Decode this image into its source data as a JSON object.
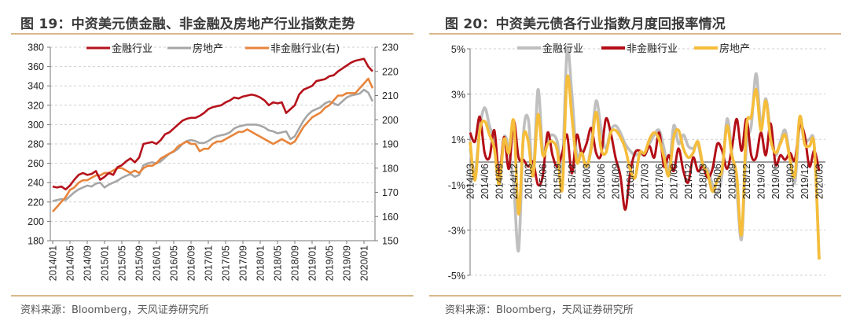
{
  "figures": [
    {
      "title": "图 19：中资美元债金融、非金融及房地产行业指数走势",
      "source": "资料来源：Bloomberg，天风证券研究所"
    },
    {
      "title": "图 20：中资美元债各行业指数月度回报率情况",
      "source": "资料来源：Bloomberg，天风证券研究所"
    }
  ],
  "chart_data": [
    {
      "type": "line",
      "title": "图 19：中资美元债金融、非金融及房地产行业指数走势",
      "xlabel": "",
      "ylabel": "",
      "ylim": [
        180,
        380
      ],
      "y2lim": [
        150,
        230
      ],
      "yticks": [
        "380",
        "360",
        "340",
        "320",
        "300",
        "280",
        "260",
        "240",
        "220",
        "200",
        "180"
      ],
      "y2ticks": [
        "230",
        "220",
        "210",
        "200",
        "190",
        "180",
        "170",
        "160",
        "150"
      ],
      "x_tick_labels": [
        "2014/01",
        "2014/05",
        "2014/09",
        "2015/01",
        "2015/05",
        "2015/09",
        "2016/01",
        "2016/05",
        "2016/09",
        "2017/01",
        "2017/05",
        "2017/09",
        "2018/01",
        "2018/05",
        "2018/09",
        "2019/01",
        "2019/05",
        "2019/09",
        "2020/01"
      ],
      "x_start": "2014/01",
      "frequency": "monthly",
      "grid": true,
      "legend_position": "top",
      "series": [
        {
          "name": "金融行业",
          "axis": "left",
          "color": "#b5121b",
          "values": [
            236,
            235,
            236,
            233,
            237,
            243,
            248,
            250,
            248,
            249,
            252,
            243,
            246,
            250,
            248,
            256,
            258,
            262,
            265,
            261,
            266,
            280,
            281,
            282,
            280,
            284,
            290,
            292,
            296,
            300,
            304,
            306,
            307,
            307,
            309,
            312,
            316,
            318,
            319,
            320,
            323,
            325,
            328,
            327,
            329,
            330,
            331,
            330,
            328,
            325,
            320,
            323,
            322,
            323,
            312,
            316,
            320,
            331,
            336,
            338,
            340,
            345,
            346,
            347,
            350,
            351,
            355,
            358,
            361,
            364,
            366,
            367,
            368,
            360,
            355
          ]
        },
        {
          "name": "房地产",
          "axis": "left",
          "color": "#a6a6a6",
          "values": [
            221,
            222,
            223,
            222,
            226,
            230,
            233,
            235,
            237,
            236,
            239,
            240,
            235,
            238,
            240,
            242,
            245,
            247,
            249,
            246,
            248,
            258,
            260,
            261,
            260,
            262,
            266,
            270,
            272,
            275,
            280,
            283,
            284,
            283,
            281,
            281,
            283,
            286,
            288,
            289,
            290,
            292,
            296,
            298,
            299,
            300,
            300,
            300,
            299,
            297,
            294,
            293,
            291,
            292,
            293,
            285,
            288,
            296,
            304,
            310,
            314,
            316,
            318,
            322,
            324,
            322,
            320,
            324,
            328,
            330,
            331,
            332,
            336,
            333,
            324
          ]
        },
        {
          "name": "非金融行业(右)",
          "axis": "right",
          "color": "#e8843b",
          "values": [
            162,
            164,
            166,
            168,
            171,
            172,
            174,
            175,
            175,
            176,
            177,
            177,
            178,
            178,
            179,
            180,
            180,
            179,
            178,
            179,
            178,
            180,
            181,
            181,
            182,
            184,
            185,
            186,
            187,
            189,
            190,
            191,
            190,
            190,
            187,
            188,
            188,
            190,
            191,
            191,
            192,
            193,
            194,
            195,
            195,
            196,
            195,
            194,
            193,
            192,
            191,
            190,
            191,
            192,
            191,
            190,
            191,
            194,
            197,
            199,
            201,
            202,
            203,
            205,
            206,
            208,
            210,
            210,
            211,
            211,
            211,
            213,
            215,
            217,
            213
          ]
        }
      ]
    },
    {
      "type": "line",
      "title": "图 20：中资美元债各行业指数月度回报率情况",
      "xlabel": "",
      "ylabel": "",
      "ylim": [
        -5,
        5
      ],
      "yticks": [
        "5%",
        "3%",
        "1%",
        "-1%",
        "-3%",
        "-5%"
      ],
      "x_tick_labels": [
        "2014/03",
        "2014/06",
        "2014/09",
        "2014/12",
        "2015/03",
        "2015/06",
        "2015/09",
        "2015/12",
        "2016/03",
        "2016/06",
        "2016/09",
        "2016/12",
        "2017/03",
        "2017/06",
        "2017/09",
        "2017/12",
        "2018/03",
        "2018/06",
        "2018/09",
        "2018/12",
        "2019/03",
        "2019/06",
        "2019/09",
        "2019/12",
        "2020/03"
      ],
      "x_start": "2014/03",
      "frequency": "monthly",
      "grid": true,
      "legend_position": "top",
      "series": [
        {
          "name": "金融行业",
          "color": "#bfbfbf",
          "values": [
            0.6,
            -0.5,
            1.5,
            2.4,
            1.6,
            0.9,
            -0.8,
            1.1,
            0.5,
            -1.0,
            -3.9,
            1.2,
            1.9,
            -0.6,
            3.2,
            0.5,
            1.0,
            1.2,
            0.9,
            -0.3,
            4.9,
            3.0,
            0.3,
            0.5,
            -0.3,
            0.8,
            2.7,
            1.5,
            0.6,
            1.4,
            1.6,
            1.3,
            0.8,
            0.5,
            0.3,
            0.4,
            0.3,
            0.8,
            1.2,
            1.4,
            0.6,
            -0.4,
            1.6,
            0.8,
            1.2,
            0.7,
            0.6,
            0.8,
            -0.2,
            -0.3,
            -1.0,
            -1.4,
            -0.5,
            1.9,
            0.4,
            -1.2,
            -3.4,
            0.7,
            1.6,
            3.9,
            1.6,
            2.8,
            1.3,
            0.3,
            0.9,
            1.4,
            0.2,
            -0.9,
            1.7,
            0.9,
            1.0,
            0.7,
            -4.3
          ]
        },
        {
          "name": "非金融行业",
          "color": "#b30e16",
          "values": [
            1.3,
            0.9,
            2.0,
            0.4,
            0.2,
            1.4,
            -0.6,
            1.1,
            -0.3,
            1.8,
            0.2,
            0.1,
            -0.2,
            0.0,
            -1.0,
            -0.6,
            1.3,
            0.3,
            -0.2,
            0.4,
            1.2,
            -0.5,
            1.2,
            0.4,
            0.8,
            1.5,
            0.4,
            0.3,
            1.9,
            1.3,
            0.2,
            -0.6,
            -2.1,
            -0.5,
            0.4,
            0.5,
            0.3,
            0.7,
            0.2,
            1.3,
            -0.2,
            0.3,
            -0.4,
            0.6,
            -0.4,
            -0.9,
            0.2,
            -0.4,
            -0.2,
            -0.7,
            -0.3,
            0.8,
            0.5,
            -0.3,
            0.6,
            1.9,
            0.5,
            1.9,
            0.3,
            0.2,
            1.3,
            0.3,
            1.7,
            -0.1,
            0.3,
            0.1,
            0.4,
            0.1,
            1.6,
            1.2,
            -0.2,
            0.5,
            -0.4
          ]
        },
        {
          "name": "房地产",
          "color": "#f5bd3a",
          "values": [
            0.9,
            -0.8,
            1.4,
            1.8,
            1.2,
            0.6,
            -1.0,
            1.0,
            0.4,
            1.8,
            -2.3,
            1.1,
            0.9,
            -0.6,
            2.1,
            0.3,
            0.8,
            0.9,
            0.5,
            -1.2,
            3.7,
            2.0,
            0.0,
            0.4,
            -0.2,
            0.6,
            2.2,
            0.6,
            0.4,
            1.3,
            1.4,
            1.1,
            0.6,
            -0.3,
            -0.7,
            0.4,
            0.4,
            1.0,
            1.3,
            1.0,
            0.2,
            -0.6,
            1.1,
            1.4,
            0.6,
            0.2,
            0.4,
            0.9,
            -0.1,
            -0.5,
            -1.3,
            -0.8,
            -0.3,
            1.6,
            0.3,
            -0.6,
            -3.2,
            1.5,
            2.0,
            3.2,
            1.4,
            2.7,
            1.0,
            0.4,
            0.8,
            1.2,
            0.1,
            -0.6,
            2.0,
            0.8,
            0.7,
            0.7,
            -4.3
          ]
        }
      ]
    }
  ]
}
